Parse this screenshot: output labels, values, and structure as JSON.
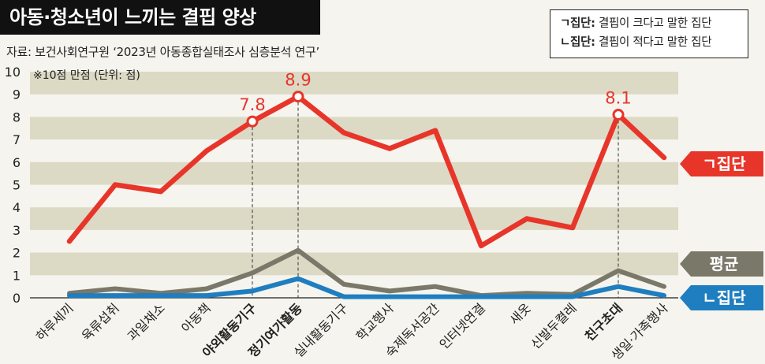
{
  "title": "아동·청소년이 느끼는 결핍 양상",
  "source": "자료: 보건사회연구원 ‘2023년 아동종합실태조사 심층분석 연구’",
  "unit_note": "※10점 만점 (단위: 점)",
  "legend": [
    {
      "key": "ㄱ집단:",
      "desc": "결핍이 크다고 말한 집단"
    },
    {
      "key": "ㄴ집단:",
      "desc": "결핍이 적다고 말한 집단"
    }
  ],
  "colors": {
    "group_a": "#e8352a",
    "average": "#7a7869",
    "group_b": "#1f7ec0",
    "band": "#dcd9c4"
  },
  "chart_data": {
    "type": "line",
    "ylim": [
      0,
      10
    ],
    "yticks": [
      "0",
      "1",
      "2",
      "3",
      "4",
      "5",
      "6",
      "7",
      "8",
      "9",
      "10"
    ],
    "categories": [
      "하루세끼",
      "육류섭취",
      "과일채소",
      "아동책",
      "야외활동기구",
      "정기여가활동",
      "실내활동기구",
      "학교행사",
      "숙제독서공간",
      "인터넷연결",
      "새옷",
      "신발두켤레",
      "친구초대",
      "생일·가족행사"
    ],
    "bold_categories": [
      "야외활동기구",
      "정기여가활동",
      "친구초대"
    ],
    "series": [
      {
        "name": "ㄱ집단",
        "values": [
          2.5,
          5.0,
          4.7,
          6.5,
          7.8,
          8.9,
          7.3,
          6.6,
          7.4,
          2.3,
          3.5,
          3.1,
          8.1,
          6.2
        ]
      },
      {
        "name": "평균",
        "values": [
          0.2,
          0.4,
          0.2,
          0.4,
          1.1,
          2.1,
          0.6,
          0.3,
          0.5,
          0.1,
          0.2,
          0.15,
          1.2,
          0.5
        ]
      },
      {
        "name": "ㄴ집단",
        "values": [
          0.1,
          0.1,
          0.1,
          0.1,
          0.3,
          0.85,
          0.05,
          0.05,
          0.05,
          0.05,
          0.05,
          0.05,
          0.5,
          0.1
        ]
      }
    ],
    "annotations": [
      {
        "category": "야외활동기구",
        "value": "7.8"
      },
      {
        "category": "정기여가활동",
        "value": "8.9"
      },
      {
        "category": "친구초대",
        "value": "8.1"
      }
    ]
  }
}
